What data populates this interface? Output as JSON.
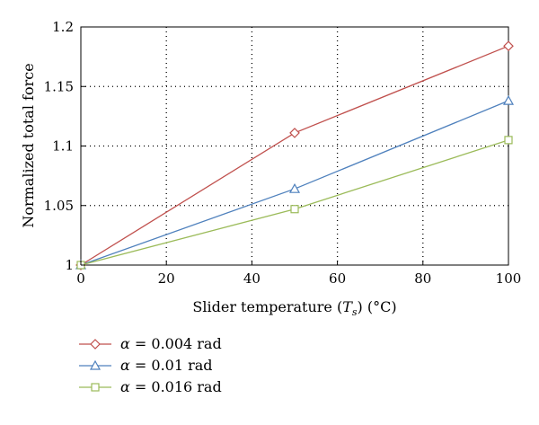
{
  "chart_data": {
    "type": "line",
    "xlabel": "Slider temperature",
    "xlabel_symbol": "T",
    "xlabel_subscript": "s",
    "xlabel_unit": "(°C)",
    "ylabel": "Normalized total force",
    "xlim": [
      0,
      100
    ],
    "ylim": [
      1,
      1.2
    ],
    "x_ticks": [
      "0",
      "20",
      "40",
      "60",
      "80",
      "100"
    ],
    "y_ticks": [
      "1",
      "1.05",
      "1.1",
      "1.15",
      "1.2"
    ],
    "grid": true,
    "legend_position": "below",
    "series": [
      {
        "name": "α = 0.004 rad",
        "name_symbol": "α",
        "name_text": "= 0.004 rad",
        "color": "#c0504d",
        "marker": "diamond",
        "x": [
          0,
          50,
          100
        ],
        "y": [
          1.0,
          1.111,
          1.184
        ]
      },
      {
        "name": "α = 0.01 rad",
        "name_symbol": "α",
        "name_text": "= 0.01 rad",
        "color": "#4f81bd",
        "marker": "triangle",
        "x": [
          0,
          50,
          100
        ],
        "y": [
          1.0,
          1.064,
          1.138
        ]
      },
      {
        "name": "α = 0.016 rad",
        "name_symbol": "α",
        "name_text": "= 0.016 rad",
        "color": "#9bbb59",
        "marker": "square",
        "x": [
          0,
          50,
          100
        ],
        "y": [
          1.0,
          1.047,
          1.105
        ]
      }
    ]
  }
}
